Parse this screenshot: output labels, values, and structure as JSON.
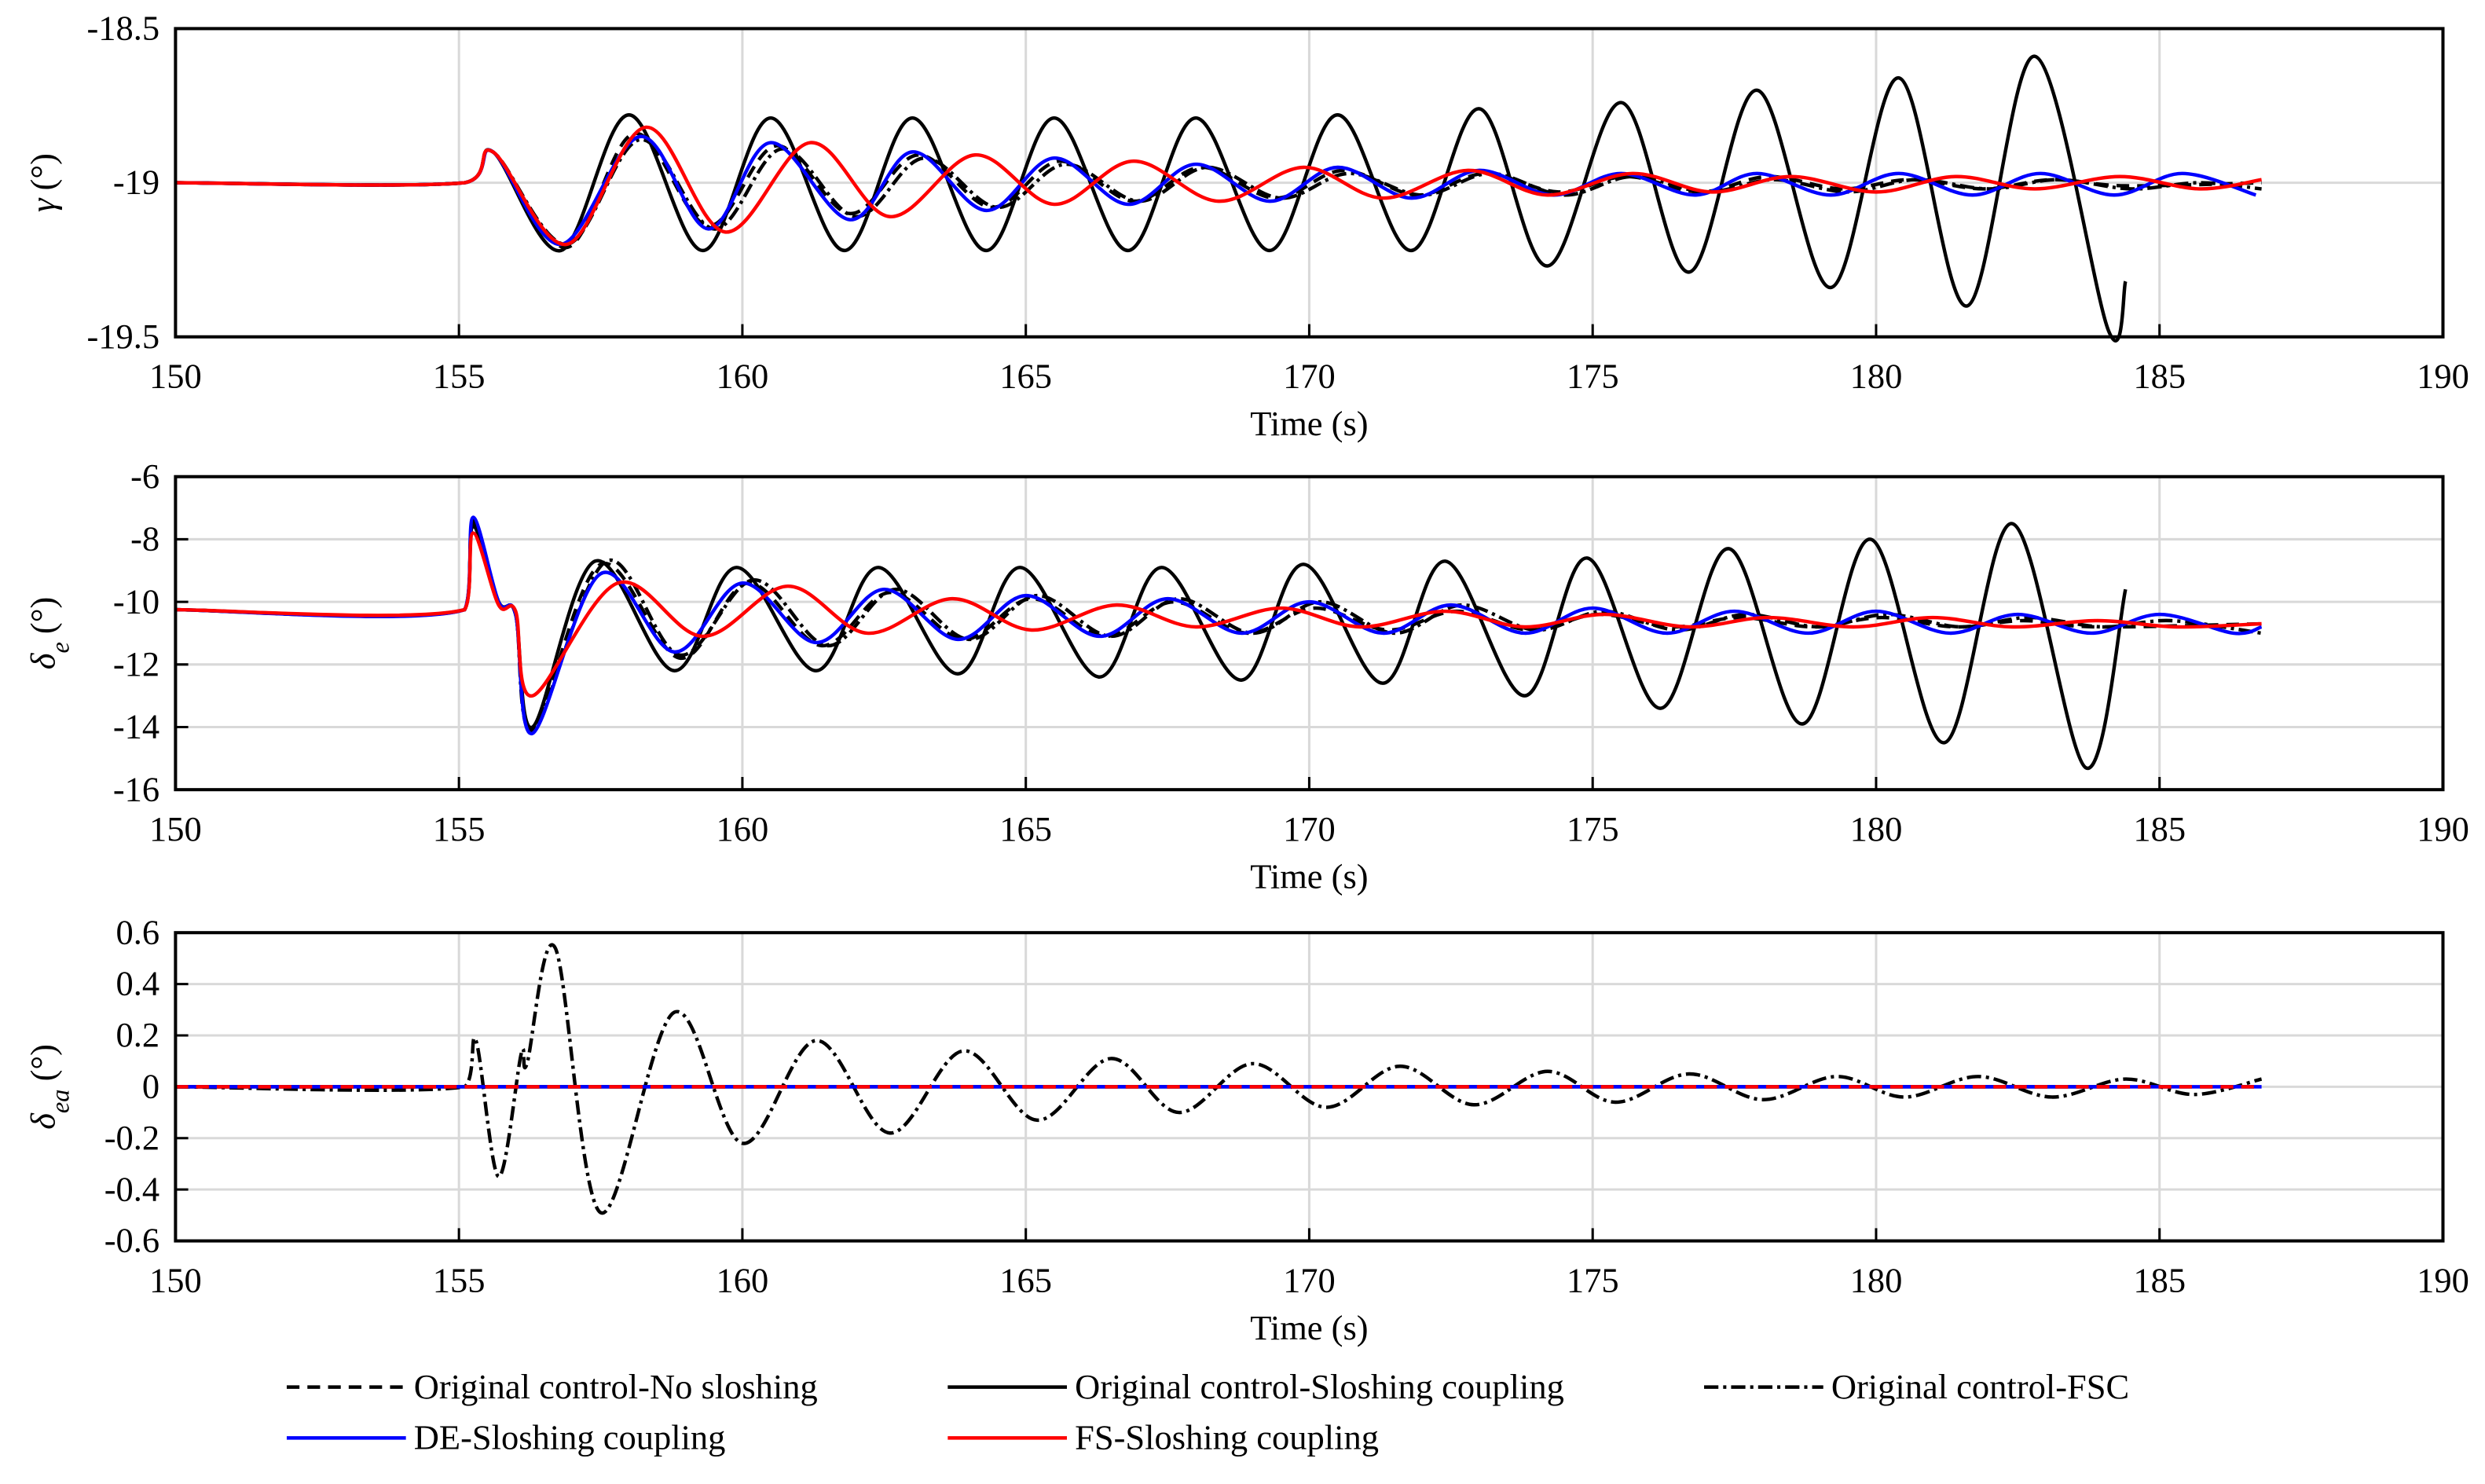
{
  "chart_data": [
    {
      "type": "line",
      "xlabel": "Time (s)",
      "ylabel": {
        "symbol": "γ",
        "unit": "(°)"
      },
      "xlim": [
        150,
        190
      ],
      "xticks": [
        150,
        155,
        160,
        165,
        170,
        175,
        180,
        185,
        190
      ],
      "ylim": [
        -19.5,
        -18.5
      ],
      "yticks": [
        -19.5,
        -19,
        -18.5
      ],
      "grid": true,
      "legend": "bottom",
      "series": [
        {
          "name": "Original control-No sloshing",
          "color": "#000000",
          "dash": "dashed",
          "x": [
            150,
            155.1,
            155.6,
            156.9,
            158.1,
            159.4,
            160.6,
            161.9,
            163.1,
            164.4,
            165.6,
            166.9,
            168.1,
            169.4,
            170.6,
            171.9,
            173.1,
            174.4,
            175.6,
            176.9,
            178.1,
            179.4,
            180.6,
            181.9,
            183.1,
            184.4,
            186.8
          ],
          "values": [
            -19,
            -19,
            -18.9,
            -19.21,
            -18.84,
            -19.14,
            -18.88,
            -19.1,
            -18.91,
            -19.08,
            -18.93,
            -19.06,
            -18.95,
            -19.05,
            -18.96,
            -19.04,
            -18.97,
            -19.03,
            -18.98,
            -19.03,
            -18.98,
            -19.02,
            -18.99,
            -19.02,
            -18.99,
            -19.01,
            -19
          ]
        },
        {
          "name": "Original control-Sloshing coupling",
          "color": "#000000",
          "dash": "solid",
          "x": [
            150,
            155.1,
            155.6,
            156.8,
            158.0,
            159.3,
            160.5,
            161.8,
            163.0,
            164.3,
            165.5,
            166.8,
            168.0,
            169.3,
            170.5,
            171.8,
            173.0,
            174.2,
            175.5,
            176.7,
            177.9,
            179.2,
            180.4,
            181.6,
            182.8,
            184.1,
            184.4
          ],
          "values": [
            -19,
            -19,
            -18.9,
            -19.22,
            -18.78,
            -19.22,
            -18.79,
            -19.22,
            -18.79,
            -19.22,
            -18.79,
            -19.22,
            -18.79,
            -19.22,
            -18.78,
            -19.22,
            -18.76,
            -19.27,
            -18.74,
            -19.29,
            -18.7,
            -19.34,
            -18.66,
            -19.4,
            -18.59,
            -19.48,
            -19.32
          ]
        },
        {
          "name": "Original control-FSC",
          "color": "#000000",
          "dash": "dashdot",
          "x": [
            150,
            155.1,
            155.6,
            156.9,
            158.2,
            159.5,
            160.7,
            162.0,
            163.2,
            164.5,
            165.7,
            167.0,
            168.2,
            169.5,
            170.7,
            172.0,
            173.2,
            174.5,
            175.7,
            177.0,
            178.2,
            179.5,
            180.7,
            182.0,
            183.2,
            184.5,
            185.7,
            186.8
          ],
          "values": [
            -19,
            -19,
            -18.9,
            -19.2,
            -18.86,
            -19.15,
            -18.89,
            -19.11,
            -18.92,
            -19.08,
            -18.94,
            -19.06,
            -18.95,
            -19.05,
            -18.97,
            -19.04,
            -18.97,
            -19.04,
            -18.98,
            -19.03,
            -18.99,
            -19.03,
            -18.99,
            -19.02,
            -18.99,
            -19.02,
            -19,
            -19.02
          ]
        },
        {
          "name": "DE-Sloshing coupling",
          "color": "#0000ff",
          "dash": "solid",
          "x": [
            150,
            155.1,
            155.6,
            156.8,
            158.2,
            159.4,
            160.5,
            161.9,
            163.0,
            164.3,
            165.5,
            166.8,
            168.0,
            169.3,
            170.5,
            171.8,
            173.0,
            174.3,
            175.5,
            176.8,
            177.9,
            179.2,
            180.4,
            181.7,
            182.9,
            184.2,
            185.4,
            186.7
          ],
          "values": [
            -19,
            -19,
            -18.9,
            -19.2,
            -18.85,
            -19.15,
            -18.87,
            -19.12,
            -18.9,
            -19.09,
            -18.92,
            -19.07,
            -18.94,
            -19.06,
            -18.95,
            -19.05,
            -18.96,
            -19.04,
            -18.97,
            -19.04,
            -18.97,
            -19.04,
            -18.97,
            -19.04,
            -18.97,
            -19.04,
            -18.97,
            -19.04
          ]
        },
        {
          "name": "FS-Sloshing coupling",
          "color": "#ff0000",
          "dash": "solid",
          "x": [
            150,
            155.1,
            155.6,
            156.9,
            158.3,
            159.7,
            161.2,
            162.6,
            164.1,
            165.5,
            166.9,
            168.4,
            169.9,
            171.3,
            172.8,
            174.2,
            175.7,
            177.1,
            178.5,
            180.0,
            181.4,
            182.8,
            184.3,
            185.7,
            186.8
          ],
          "values": [
            -19,
            -19,
            -18.9,
            -19.2,
            -18.82,
            -19.16,
            -18.87,
            -19.11,
            -18.91,
            -19.07,
            -18.93,
            -19.06,
            -18.95,
            -19.05,
            -18.96,
            -19.04,
            -18.97,
            -19.03,
            -18.98,
            -19.03,
            -18.98,
            -19.02,
            -18.98,
            -19.02,
            -18.99
          ]
        }
      ]
    },
    {
      "type": "line",
      "xlabel": "Time (s)",
      "ylabel": {
        "symbol": "δ",
        "sub": "e",
        "unit": "(°)"
      },
      "xlim": [
        150,
        190
      ],
      "xticks": [
        150,
        155,
        160,
        165,
        170,
        175,
        180,
        185,
        190
      ],
      "ylim": [
        -16,
        -6
      ],
      "yticks": [
        -16,
        -14,
        -12,
        -10,
        -8,
        -6
      ],
      "grid": true,
      "series": [
        {
          "color": "#000000",
          "dash": "dashed",
          "x": [
            150,
            155.1,
            155.25,
            155.7,
            156.0,
            156.3,
            157.5,
            158.9,
            160.1,
            161.4,
            162.6,
            163.9,
            165.1,
            166.4,
            167.6,
            168.9,
            170.1,
            171.4,
            172.6,
            173.9,
            175.1,
            176.4,
            177.6,
            178.9,
            180.1,
            181.4,
            182.6,
            183.9,
            186.8
          ],
          "values": [
            -10.25,
            -10.25,
            -7.5,
            -10.0,
            -10.4,
            -14.1,
            -8.8,
            -11.8,
            -9.4,
            -11.4,
            -9.7,
            -11.2,
            -9.9,
            -11.1,
            -10.0,
            -11.0,
            -10.2,
            -10.9,
            -10.3,
            -10.9,
            -10.4,
            -10.8,
            -10.5,
            -10.8,
            -10.5,
            -10.8,
            -10.6,
            -10.8,
            -10.7
          ]
        },
        {
          "color": "#000000",
          "dash": "solid",
          "x": [
            150,
            155.1,
            155.25,
            155.7,
            156.0,
            156.3,
            157.4,
            158.8,
            159.9,
            161.3,
            162.4,
            163.8,
            164.9,
            166.3,
            167.4,
            168.8,
            169.9,
            171.3,
            172.4,
            173.8,
            174.9,
            176.2,
            177.4,
            178.7,
            179.9,
            181.2,
            182.4,
            183.7,
            184.4
          ],
          "values": [
            -10.25,
            -10.25,
            -7.6,
            -10.0,
            -10.4,
            -14.0,
            -8.7,
            -12.2,
            -8.9,
            -12.2,
            -8.9,
            -12.3,
            -8.9,
            -12.4,
            -8.9,
            -12.5,
            -8.8,
            -12.6,
            -8.7,
            -13.0,
            -8.6,
            -13.4,
            -8.3,
            -13.9,
            -8.0,
            -14.5,
            -7.5,
            -15.3,
            -9.6
          ]
        },
        {
          "color": "#000000",
          "dash": "dashdot",
          "x": [
            150,
            155.1,
            155.25,
            155.7,
            156.0,
            156.3,
            157.6,
            158.9,
            160.2,
            161.5,
            162.7,
            164.0,
            165.2,
            166.5,
            167.7,
            169.0,
            170.2,
            171.5,
            172.7,
            174.0,
            175.2,
            176.5,
            177.7,
            179.0,
            180.2,
            181.5,
            182.7,
            184.0,
            185.2,
            186.8
          ],
          "values": [
            -10.25,
            -10.25,
            -7.4,
            -10.0,
            -10.4,
            -14.1,
            -8.7,
            -11.7,
            -9.3,
            -11.4,
            -9.6,
            -11.2,
            -9.8,
            -11.1,
            -9.9,
            -11.0,
            -10.0,
            -11.0,
            -10.1,
            -10.9,
            -10.3,
            -10.9,
            -10.4,
            -10.8,
            -10.4,
            -10.8,
            -10.5,
            -10.8,
            -10.6,
            -11.0
          ]
        },
        {
          "color": "#0000ff",
          "dash": "solid",
          "x": [
            150,
            155.1,
            155.25,
            155.7,
            156.0,
            156.3,
            157.5,
            158.8,
            160.0,
            161.3,
            162.5,
            163.8,
            165.0,
            166.3,
            167.5,
            168.8,
            170.0,
            171.3,
            172.5,
            173.8,
            175.0,
            176.3,
            177.5,
            178.8,
            180.0,
            181.3,
            182.5,
            183.8,
            185.0,
            186.3,
            186.8
          ],
          "values": [
            -10.25,
            -10.25,
            -7.3,
            -10.0,
            -10.4,
            -14.2,
            -9.1,
            -11.6,
            -9.4,
            -11.3,
            -9.6,
            -11.2,
            -9.8,
            -11.1,
            -9.9,
            -11.0,
            -10.0,
            -11.0,
            -10.1,
            -11.0,
            -10.2,
            -11.0,
            -10.3,
            -11.0,
            -10.3,
            -11.0,
            -10.4,
            -11.0,
            -10.4,
            -11.0,
            -10.8
          ]
        },
        {
          "color": "#ff0000",
          "dash": "solid",
          "x": [
            150,
            155.1,
            155.25,
            155.7,
            156.0,
            156.3,
            157.8,
            159.3,
            160.8,
            162.2,
            163.7,
            165.1,
            166.6,
            168.0,
            169.5,
            170.9,
            172.4,
            173.8,
            175.2,
            176.7,
            178.1,
            179.6,
            181.0,
            182.4,
            183.9,
            185.3,
            186.8
          ],
          "values": [
            -10.25,
            -10.25,
            -7.8,
            -10.1,
            -10.3,
            -13.0,
            -9.4,
            -11.1,
            -9.5,
            -11.0,
            -9.9,
            -10.9,
            -10.1,
            -10.8,
            -10.2,
            -10.8,
            -10.3,
            -10.8,
            -10.4,
            -10.8,
            -10.5,
            -10.8,
            -10.5,
            -10.8,
            -10.6,
            -10.8,
            -10.7
          ]
        }
      ]
    },
    {
      "type": "line",
      "xlabel": "Time (s)",
      "ylabel": {
        "symbol": "δ",
        "sub": "ea",
        "unit": "(°)"
      },
      "xlim": [
        150,
        190
      ],
      "xticks": [
        150,
        155,
        160,
        165,
        170,
        175,
        180,
        185,
        190
      ],
      "ylim": [
        -0.6,
        0.6
      ],
      "yticks": [
        -0.6,
        -0.4,
        -0.2,
        0,
        0.2,
        0.4,
        0.6
      ],
      "grid": true,
      "series": [
        {
          "color": "#000000",
          "dash": "dashed",
          "x": [
            150,
            186.8
          ],
          "values": [
            0,
            0
          ]
        },
        {
          "color": "#000000",
          "dash": "solid",
          "x": [
            150,
            184.4
          ],
          "values": [
            0,
            0
          ]
        },
        {
          "color": "#000000",
          "dash": "dashdot",
          "x": [
            150,
            155.1,
            155.3,
            155.7,
            156.1,
            156.2,
            156.7,
            157.5,
            158.8,
            160.0,
            161.3,
            162.6,
            163.9,
            165.2,
            166.5,
            167.7,
            169.0,
            170.3,
            171.6,
            172.9,
            174.2,
            175.4,
            176.7,
            178.0,
            179.3,
            180.5,
            181.8,
            183.1,
            184.4,
            185.6,
            186.8
          ],
          "values": [
            0,
            0,
            0.18,
            -0.35,
            0.13,
            0.09,
            0.54,
            -0.49,
            0.29,
            -0.22,
            0.18,
            -0.18,
            0.14,
            -0.13,
            0.11,
            -0.1,
            0.09,
            -0.08,
            0.08,
            -0.07,
            0.06,
            -0.06,
            0.05,
            -0.05,
            0.04,
            -0.04,
            0.04,
            -0.04,
            0.03,
            -0.03,
            0.03
          ]
        },
        {
          "color": "#0000ff",
          "dash": "solid",
          "x": [
            150,
            186.8
          ],
          "values": [
            0,
            0
          ]
        },
        {
          "color": "#ff0000",
          "dash": "dashed",
          "x": [
            150,
            186.8
          ],
          "values": [
            0,
            0
          ]
        }
      ]
    }
  ]
}
